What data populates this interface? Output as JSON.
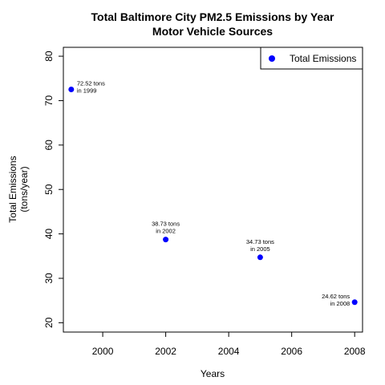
{
  "chart_data": {
    "type": "scatter",
    "title": "Total Baltimore City PM2.5 Emissions by Year",
    "subtitle": "Motor Vehicle Sources",
    "xlabel": "Years",
    "ylabel_line1": "Total Emissions",
    "ylabel_line2": "(tons/year)",
    "xlim": [
      1998.75,
      2008.25
    ],
    "ylim": [
      17.9,
      82.0
    ],
    "x_ticks": [
      2000,
      2002,
      2004,
      2006,
      2008
    ],
    "y_ticks": [
      20,
      30,
      40,
      50,
      60,
      70,
      80
    ],
    "grid": false,
    "legend_position": "top-right",
    "series": [
      {
        "name": "Total Emissions",
        "color": "#0000ff",
        "x": [
          1999,
          2002,
          2005,
          2008
        ],
        "y": [
          72.52,
          38.73,
          34.73,
          24.62
        ]
      }
    ],
    "annotations": [
      {
        "line1": "72.52 tons",
        "line2": "in 1999"
      },
      {
        "line1": "38.73 tons",
        "line2": "in 2002"
      },
      {
        "line1": "34.73 tons",
        "line2": "in 2005"
      },
      {
        "line1": "24.62 tons",
        "line2": "in 2008"
      }
    ]
  }
}
